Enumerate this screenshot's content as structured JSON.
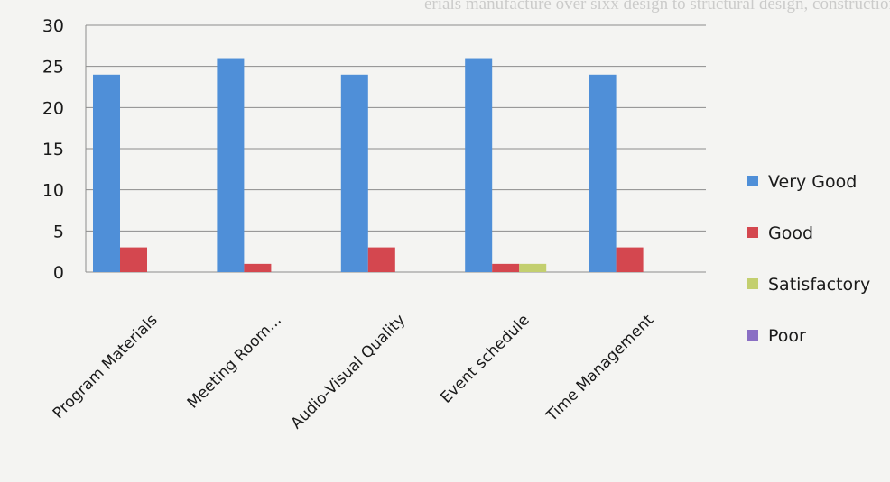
{
  "background_text": "erials manufacture over sixx design to structural design, construction, and se",
  "chart_data": {
    "type": "bar",
    "title": "",
    "xlabel": "",
    "ylabel": "",
    "categories": [
      "Program Materials",
      "Meeting Room...",
      "Audio-Visual Quality",
      "Event schedule",
      "Time Management"
    ],
    "ylim": [
      0,
      30
    ],
    "yticks": [
      0,
      5,
      10,
      15,
      20,
      25,
      30
    ],
    "grid": true,
    "legend_position": "right",
    "series": [
      {
        "name": "Very Good",
        "color": "#4f8fd8",
        "values": [
          24,
          26,
          24,
          26,
          24
        ]
      },
      {
        "name": "Good",
        "color": "#d4474f",
        "values": [
          3,
          1,
          3,
          1,
          3
        ]
      },
      {
        "name": "Satisfactory",
        "color": "#c3cf6f",
        "values": [
          0,
          0,
          0,
          1,
          0
        ]
      },
      {
        "name": "Poor",
        "color": "#8a6fc4",
        "values": [
          0,
          0,
          0,
          0,
          0
        ]
      }
    ]
  }
}
